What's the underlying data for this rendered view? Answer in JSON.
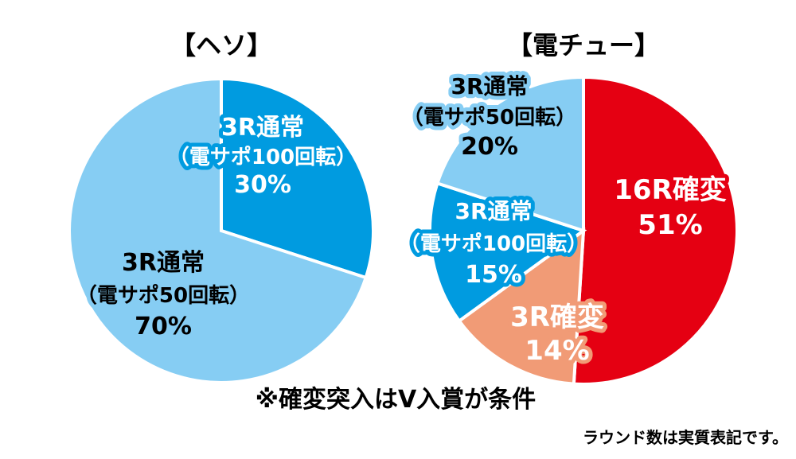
{
  "chart_data": [
    {
      "type": "pie",
      "title": "【ヘソ】",
      "slices": [
        {
          "label_lines": [
            "3R通常",
            "（電サポ100回転）",
            "30%"
          ],
          "value": 30,
          "color": "#009be0",
          "text_color": "#ffffff",
          "outline": "#009be0"
        },
        {
          "label_lines": [
            "3R通常",
            "（電サポ50回転）",
            "70%"
          ],
          "value": 70,
          "color": "#86cdf3",
          "text_color": "#000000",
          "outline": "#86cdf3"
        }
      ]
    },
    {
      "type": "pie",
      "title": "【電チュー】",
      "slices": [
        {
          "label_lines": [
            "16R確変",
            "51%"
          ],
          "value": 51,
          "color": "#e50012",
          "text_color": "#ffffff",
          "outline": "#e50012"
        },
        {
          "label_lines": [
            "3R確変",
            "14%"
          ],
          "value": 14,
          "color": "#f19b76",
          "text_color": "#ffffff",
          "outline": "#f19b76"
        },
        {
          "label_lines": [
            "3R通常",
            "（電サポ100回転）",
            "15%"
          ],
          "value": 15,
          "color": "#009be0",
          "text_color": "#ffffff",
          "outline": "#009be0"
        },
        {
          "label_lines": [
            "3R通常",
            "（電サポ50回転）",
            "20%"
          ],
          "value": 20,
          "color": "#86cdf3",
          "text_color": "#000000",
          "outline": "#86cdf3"
        }
      ]
    }
  ],
  "footnote": "※確変突入はV入賞が条件",
  "note": "ラウンド数は実質表記です。"
}
